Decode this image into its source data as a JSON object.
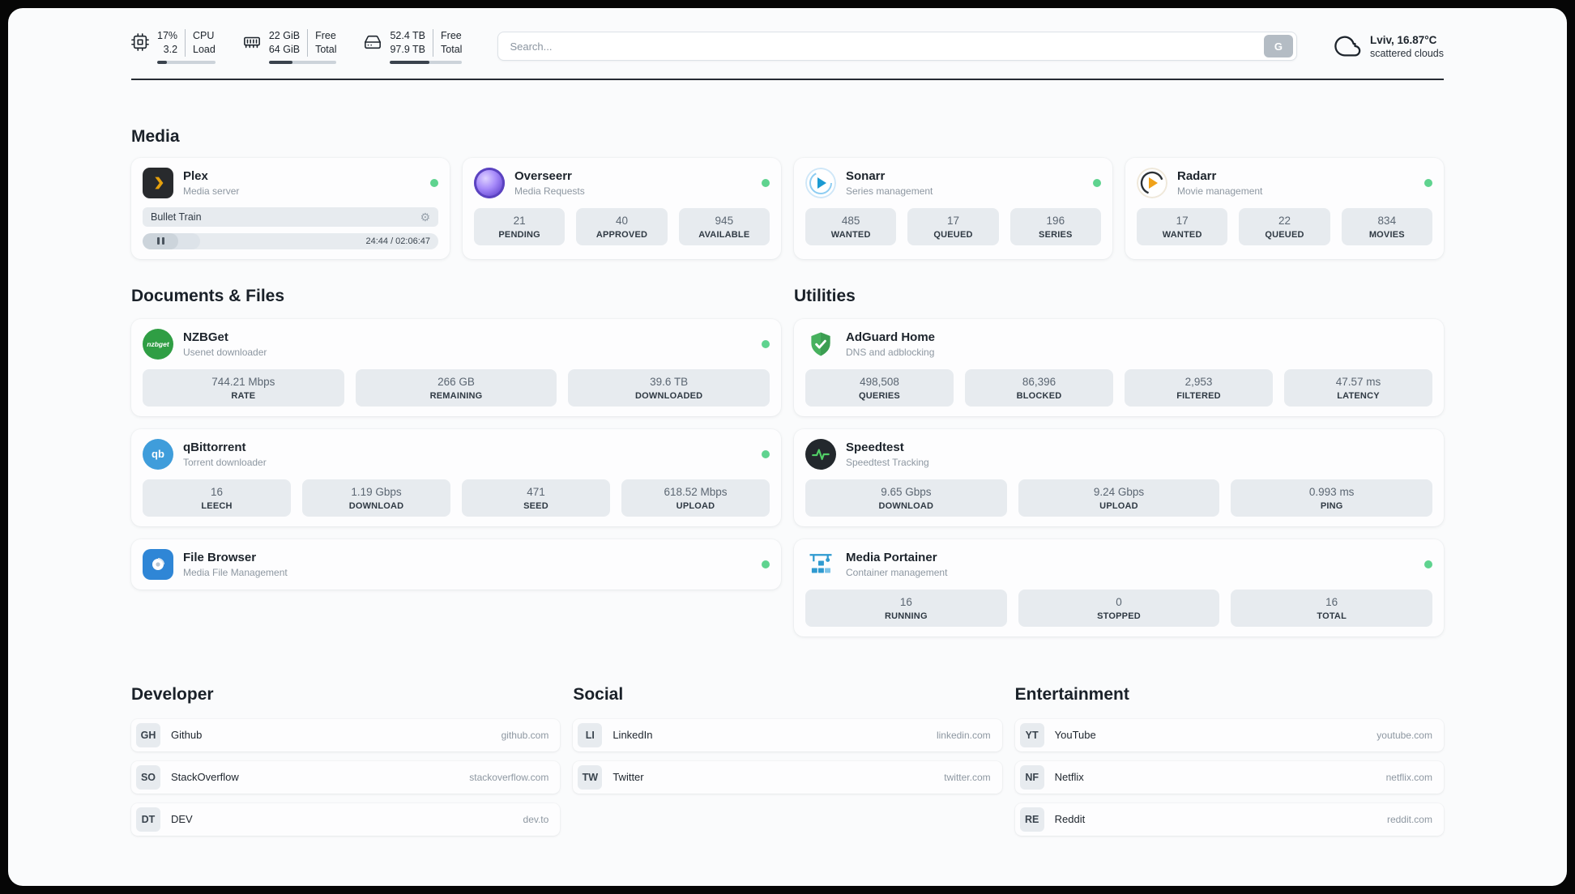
{
  "colors": {
    "status_online": "#5fd38f",
    "divider": "#262c33",
    "stat_box_bg": "#e7ebef",
    "panel_bg": "#fafbfc"
  },
  "header": {
    "cpu": {
      "value_top": "17%",
      "value_bottom": "3.2",
      "label_top": "CPU",
      "label_bottom": "Load",
      "progress_percent": 17
    },
    "ram": {
      "value_top": "22 GiB",
      "value_bottom": "64 GiB",
      "label_top": "Free",
      "label_bottom": "Total",
      "progress_percent": 35
    },
    "disk": {
      "value_top": "52.4 TB",
      "value_bottom": "97.9 TB",
      "label_top": "Free",
      "label_bottom": "Total",
      "progress_percent": 54
    },
    "search": {
      "placeholder": "Search...",
      "button_label": "G"
    },
    "weather": {
      "location": "Lviv, 16.87°C",
      "condition": "scattered clouds"
    }
  },
  "sections": {
    "media": {
      "title": "Media",
      "plex": {
        "name": "Plex",
        "subtitle": "Media server",
        "now_playing": "Bullet Train",
        "time": "24:44 / 02:06:47",
        "progress_percent": 19.5
      },
      "overseerr": {
        "name": "Overseerr",
        "subtitle": "Media Requests",
        "stats": [
          {
            "value": "21",
            "label": "PENDING"
          },
          {
            "value": "40",
            "label": "APPROVED"
          },
          {
            "value": "945",
            "label": "AVAILABLE"
          }
        ]
      },
      "sonarr": {
        "name": "Sonarr",
        "subtitle": "Series management",
        "stats": [
          {
            "value": "485",
            "label": "WANTED"
          },
          {
            "value": "17",
            "label": "QUEUED"
          },
          {
            "value": "196",
            "label": "SERIES"
          }
        ]
      },
      "radarr": {
        "name": "Radarr",
        "subtitle": "Movie management",
        "stats": [
          {
            "value": "17",
            "label": "WANTED"
          },
          {
            "value": "22",
            "label": "QUEUED"
          },
          {
            "value": "834",
            "label": "MOVIES"
          }
        ]
      }
    },
    "documents": {
      "title": "Documents & Files",
      "nzbget": {
        "name": "NZBGet",
        "subtitle": "Usenet downloader",
        "icon_text": "nzbget",
        "stats": [
          {
            "value": "744.21 Mbps",
            "label": "RATE"
          },
          {
            "value": "266 GB",
            "label": "REMAINING"
          },
          {
            "value": "39.6 TB",
            "label": "DOWNLOADED"
          }
        ]
      },
      "qbittorrent": {
        "name": "qBittorrent",
        "subtitle": "Torrent downloader",
        "icon_text": "qb",
        "stats": [
          {
            "value": "16",
            "label": "LEECH"
          },
          {
            "value": "1.19 Gbps",
            "label": "DOWNLOAD"
          },
          {
            "value": "471",
            "label": "SEED"
          },
          {
            "value": "618.52 Mbps",
            "label": "UPLOAD"
          }
        ]
      },
      "filebrowser": {
        "name": "File Browser",
        "subtitle": "Media File Management"
      }
    },
    "utilities": {
      "title": "Utilities",
      "adguard": {
        "name": "AdGuard Home",
        "subtitle": "DNS and adblocking",
        "stats": [
          {
            "value": "498,508",
            "label": "QUERIES"
          },
          {
            "value": "86,396",
            "label": "BLOCKED"
          },
          {
            "value": "2,953",
            "label": "FILTERED"
          },
          {
            "value": "47.57 ms",
            "label": "LATENCY"
          }
        ]
      },
      "speedtest": {
        "name": "Speedtest",
        "subtitle": "Speedtest Tracking",
        "stats": [
          {
            "value": "9.65 Gbps",
            "label": "DOWNLOAD"
          },
          {
            "value": "9.24 Gbps",
            "label": "UPLOAD"
          },
          {
            "value": "0.993 ms",
            "label": "PING"
          }
        ]
      },
      "portainer": {
        "name": "Media Portainer",
        "subtitle": "Container management",
        "stats": [
          {
            "value": "16",
            "label": "RUNNING"
          },
          {
            "value": "0",
            "label": "STOPPED"
          },
          {
            "value": "16",
            "label": "TOTAL"
          }
        ]
      }
    },
    "bookmarks": {
      "developer": {
        "title": "Developer",
        "items": [
          {
            "abbr": "GH",
            "name": "Github",
            "url": "github.com"
          },
          {
            "abbr": "SO",
            "name": "StackOverflow",
            "url": "stackoverflow.com"
          },
          {
            "abbr": "DT",
            "name": "DEV",
            "url": "dev.to"
          }
        ]
      },
      "social": {
        "title": "Social",
        "items": [
          {
            "abbr": "LI",
            "name": "LinkedIn",
            "url": "linkedin.com"
          },
          {
            "abbr": "TW",
            "name": "Twitter",
            "url": "twitter.com"
          }
        ]
      },
      "entertainment": {
        "title": "Entertainment",
        "items": [
          {
            "abbr": "YT",
            "name": "YouTube",
            "url": "youtube.com"
          },
          {
            "abbr": "NF",
            "name": "Netflix",
            "url": "netflix.com"
          },
          {
            "abbr": "RE",
            "name": "Reddit",
            "url": "reddit.com"
          }
        ]
      }
    }
  }
}
